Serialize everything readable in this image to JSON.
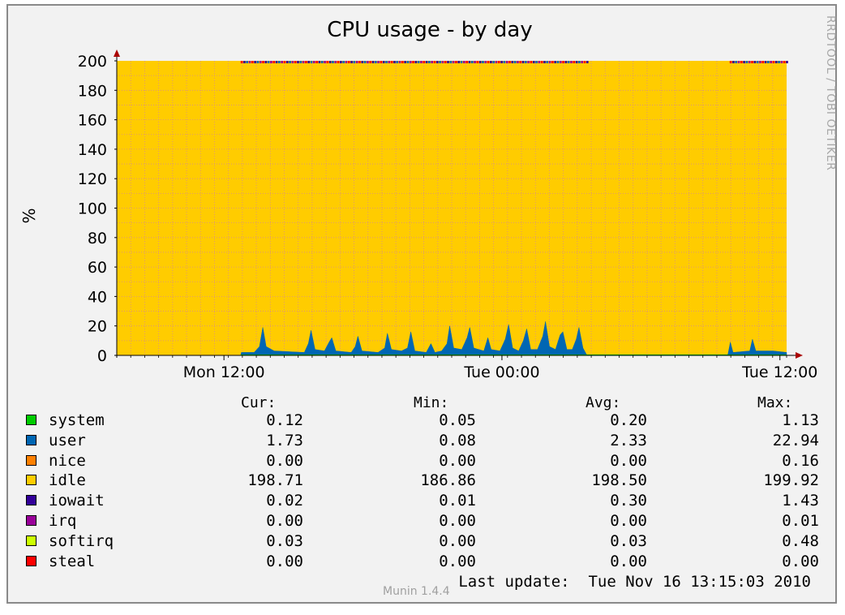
{
  "chart_data": {
    "type": "area",
    "title": "CPU usage - by day",
    "ylabel": "%",
    "ylim": [
      0,
      200
    ],
    "yticks": [
      0,
      20,
      40,
      60,
      80,
      100,
      120,
      140,
      160,
      180,
      200
    ],
    "xtick_labels": [
      "Mon 12:00",
      "Tue 00:00",
      "Tue 12:00"
    ],
    "grid": true,
    "series": [
      {
        "name": "system",
        "color": "#00cc00"
      },
      {
        "name": "user",
        "color": "#0066b3"
      },
      {
        "name": "nice",
        "color": "#ff8000"
      },
      {
        "name": "idle",
        "color": "#ffcc00"
      },
      {
        "name": "iowait",
        "color": "#330099"
      },
      {
        "name": "irq",
        "color": "#990099"
      },
      {
        "name": "softirq",
        "color": "#ccff00"
      },
      {
        "name": "steal",
        "color": "#ff0000"
      }
    ],
    "user_profile": [
      {
        "t": 0.185,
        "v": 0
      },
      {
        "t": 0.186,
        "v": 2
      },
      {
        "t": 0.205,
        "v": 2
      },
      {
        "t": 0.213,
        "v": 6
      },
      {
        "t": 0.218,
        "v": 19
      },
      {
        "t": 0.223,
        "v": 6
      },
      {
        "t": 0.235,
        "v": 3
      },
      {
        "t": 0.28,
        "v": 2
      },
      {
        "t": 0.286,
        "v": 8
      },
      {
        "t": 0.29,
        "v": 17
      },
      {
        "t": 0.296,
        "v": 4
      },
      {
        "t": 0.31,
        "v": 3
      },
      {
        "t": 0.317,
        "v": 9
      },
      {
        "t": 0.321,
        "v": 12
      },
      {
        "t": 0.327,
        "v": 3
      },
      {
        "t": 0.35,
        "v": 2
      },
      {
        "t": 0.356,
        "v": 6
      },
      {
        "t": 0.36,
        "v": 13
      },
      {
        "t": 0.366,
        "v": 3
      },
      {
        "t": 0.39,
        "v": 2
      },
      {
        "t": 0.4,
        "v": 5
      },
      {
        "t": 0.404,
        "v": 15
      },
      {
        "t": 0.41,
        "v": 4
      },
      {
        "t": 0.425,
        "v": 3
      },
      {
        "t": 0.434,
        "v": 5
      },
      {
        "t": 0.439,
        "v": 16
      },
      {
        "t": 0.445,
        "v": 3
      },
      {
        "t": 0.462,
        "v": 2
      },
      {
        "t": 0.469,
        "v": 8
      },
      {
        "t": 0.475,
        "v": 2
      },
      {
        "t": 0.485,
        "v": 3
      },
      {
        "t": 0.493,
        "v": 8
      },
      {
        "t": 0.497,
        "v": 20
      },
      {
        "t": 0.503,
        "v": 5
      },
      {
        "t": 0.515,
        "v": 4
      },
      {
        "t": 0.523,
        "v": 12
      },
      {
        "t": 0.527,
        "v": 19
      },
      {
        "t": 0.533,
        "v": 5
      },
      {
        "t": 0.548,
        "v": 3
      },
      {
        "t": 0.554,
        "v": 12
      },
      {
        "t": 0.559,
        "v": 4
      },
      {
        "t": 0.572,
        "v": 3
      },
      {
        "t": 0.58,
        "v": 11
      },
      {
        "t": 0.585,
        "v": 21
      },
      {
        "t": 0.591,
        "v": 5
      },
      {
        "t": 0.6,
        "v": 3
      },
      {
        "t": 0.607,
        "v": 10
      },
      {
        "t": 0.612,
        "v": 18
      },
      {
        "t": 0.618,
        "v": 4
      },
      {
        "t": 0.628,
        "v": 4
      },
      {
        "t": 0.636,
        "v": 13
      },
      {
        "t": 0.64,
        "v": 23
      },
      {
        "t": 0.646,
        "v": 6
      },
      {
        "t": 0.655,
        "v": 4
      },
      {
        "t": 0.662,
        "v": 14
      },
      {
        "t": 0.666,
        "v": 16
      },
      {
        "t": 0.672,
        "v": 4
      },
      {
        "t": 0.68,
        "v": 4
      },
      {
        "t": 0.686,
        "v": 11
      },
      {
        "t": 0.69,
        "v": 19
      },
      {
        "t": 0.696,
        "v": 5
      },
      {
        "t": 0.702,
        "v": 0
      },
      {
        "t": 0.912,
        "v": 0
      },
      {
        "t": 0.913,
        "v": 2
      },
      {
        "t": 0.916,
        "v": 9
      },
      {
        "t": 0.92,
        "v": 2
      },
      {
        "t": 0.945,
        "v": 3
      },
      {
        "t": 0.949,
        "v": 11
      },
      {
        "t": 0.954,
        "v": 3
      },
      {
        "t": 0.98,
        "v": 3
      },
      {
        "t": 1.0,
        "v": 2
      }
    ]
  },
  "legend": {
    "headers": {
      "cur": "Cur:",
      "min": "Min:",
      "avg": "Avg:",
      "max": "Max:"
    },
    "rows": [
      {
        "name": "system",
        "color": "#00cc00",
        "cur": "0.12",
        "min": "0.05",
        "avg": "0.20",
        "max": "1.13"
      },
      {
        "name": "user",
        "color": "#0066b3",
        "cur": "1.73",
        "min": "0.08",
        "avg": "2.33",
        "max": "22.94"
      },
      {
        "name": "nice",
        "color": "#ff8000",
        "cur": "0.00",
        "min": "0.00",
        "avg": "0.00",
        "max": "0.16"
      },
      {
        "name": "idle",
        "color": "#ffcc00",
        "cur": "198.71",
        "min": "186.86",
        "avg": "198.50",
        "max": "199.92"
      },
      {
        "name": "iowait",
        "color": "#330099",
        "cur": "0.02",
        "min": "0.01",
        "avg": "0.30",
        "max": "1.43"
      },
      {
        "name": "irq",
        "color": "#990099",
        "cur": "0.00",
        "min": "0.00",
        "avg": "0.00",
        "max": "0.01"
      },
      {
        "name": "softirq",
        "color": "#ccff00",
        "cur": "0.03",
        "min": "0.00",
        "avg": "0.03",
        "max": "0.48"
      },
      {
        "name": "steal",
        "color": "#ff0000",
        "cur": "0.00",
        "min": "0.00",
        "avg": "0.00",
        "max": "0.00"
      }
    ]
  },
  "last_update": "Last update:  Tue Nov 16 13:15:03 2010",
  "watermark": "RRDTOOL / TOBI OETIKER",
  "version": "Munin 1.4.4"
}
